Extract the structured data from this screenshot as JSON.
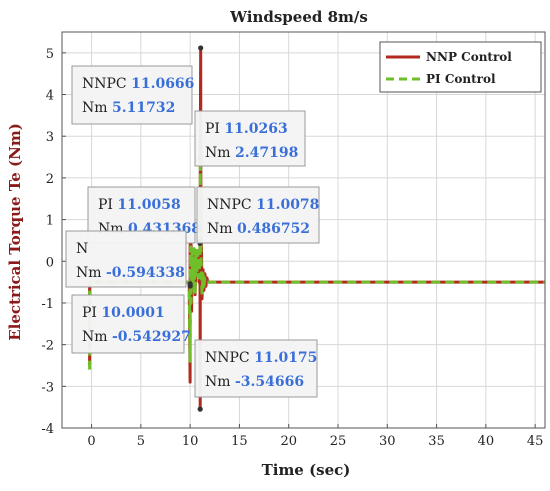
{
  "chart_data": {
    "type": "line",
    "title": "Windspeed 8m/s",
    "xlabel": "Time (sec)",
    "ylabel": "Electrical Torque Te (Nm)",
    "xlim": [
      -3,
      46
    ],
    "ylim": [
      -4,
      5.5
    ],
    "xticks": [
      0,
      5,
      10,
      15,
      20,
      25,
      30,
      35,
      40,
      45
    ],
    "yticks": [
      -4,
      -3,
      -2,
      -1,
      0,
      1,
      2,
      3,
      4,
      5
    ],
    "grid": true,
    "legend_position": "top-right",
    "series": [
      {
        "name": "NNP Control",
        "color": "#b22a1e",
        "style": "solid",
        "x": [
          -0.2,
          -0.2,
          0,
          9.9,
          10.0,
          10.0,
          10.05,
          10.1,
          10.15,
          10.2,
          10.3,
          10.4,
          10.5,
          10.6,
          10.7,
          10.8,
          10.9,
          11.0,
          11.0175,
          11.03,
          11.05,
          11.0666,
          11.08,
          11.1,
          11.15,
          11.2,
          11.3,
          11.4,
          11.5,
          11.6,
          11.7,
          11.8,
          12.0,
          12.5,
          46
        ],
        "y": [
          -2.5,
          -0.5,
          -0.5,
          -0.5,
          -2.9,
          0.4,
          -1.0,
          0.4,
          -1.2,
          0.3,
          -0.3,
          0.3,
          -0.8,
          0.2,
          -0.2,
          0.1,
          -0.5,
          0.45,
          -3.54666,
          2.0,
          4.0,
          5.11732,
          2.4,
          0.6,
          0.3,
          -0.9,
          -0.2,
          -0.7,
          -0.3,
          -0.6,
          -0.4,
          -0.5,
          -0.5,
          -0.5,
          -0.5
        ]
      },
      {
        "name": "PI Control",
        "color": "#6fbf2a",
        "style": "dashed",
        "x": [
          -0.2,
          -0.2,
          0,
          9.9,
          10.0,
          10.0001,
          10.05,
          10.1,
          10.2,
          10.3,
          10.4,
          10.5,
          10.6,
          10.7,
          10.8,
          10.9,
          11.0,
          11.0058,
          11.0263,
          11.05,
          11.1,
          11.2,
          11.3,
          11.4,
          11.5,
          11.7,
          12.0,
          46
        ],
        "y": [
          -2.6,
          -0.5,
          -0.5,
          -0.5,
          -2.4,
          -0.542927,
          0.35,
          -1.0,
          0.3,
          -0.6,
          0.3,
          -0.8,
          0.3,
          -0.3,
          0.25,
          -0.4,
          0.2,
          0.431368,
          2.47198,
          1.2,
          0.1,
          -0.8,
          -0.3,
          -0.6,
          -0.4,
          -0.5,
          -0.5,
          -0.5
        ]
      }
    ],
    "annotations": [
      {
        "label": "NNPC",
        "x": 11.0666,
        "y": 5.11732
      },
      {
        "label": "PI",
        "x": 11.0263,
        "y": 2.47198
      },
      {
        "label": "PI",
        "x": 11.0058,
        "y": 0.431368
      },
      {
        "label": "NNPC",
        "x": 11.0078,
        "y": 0.486752
      },
      {
        "label": "NNPC",
        "x": 10.0,
        "y": -0.594338
      },
      {
        "label": "PI",
        "x": 10.0001,
        "y": -0.542927
      },
      {
        "label": "NNPC",
        "x": 11.0175,
        "y": -3.54666
      }
    ]
  },
  "tooltips": [
    {
      "key1": "NNPC",
      "val1": "11.0666",
      "key2": "Nm",
      "val2": "5.11732"
    },
    {
      "key1": "PI",
      "val1": "11.0263",
      "key2": "Nm",
      "val2": "2.47198"
    },
    {
      "key1": "PI",
      "val1": "11.0058",
      "key2": "Nm",
      "val2": "0.431368"
    },
    {
      "key1": "NNPC",
      "val1": "11.0078",
      "key2": "Nm",
      "val2": "0.486752"
    },
    {
      "key1": "N",
      "val1": "",
      "key2": "Nm",
      "val2": "-0.594338"
    },
    {
      "key1": "PI",
      "val1": "10.0001",
      "key2": "Nm",
      "val2": "-0.542927"
    },
    {
      "key1": "NNPC",
      "val1": "11.0175",
      "key2": "Nm",
      "val2": "-3.54666"
    }
  ],
  "colors": {
    "ylabel": "#8b1a1a",
    "grid": "#d8d8d8",
    "box": "#555555",
    "tip_border": "#9a9a9a",
    "tip_fill": "#f4f4f4"
  }
}
